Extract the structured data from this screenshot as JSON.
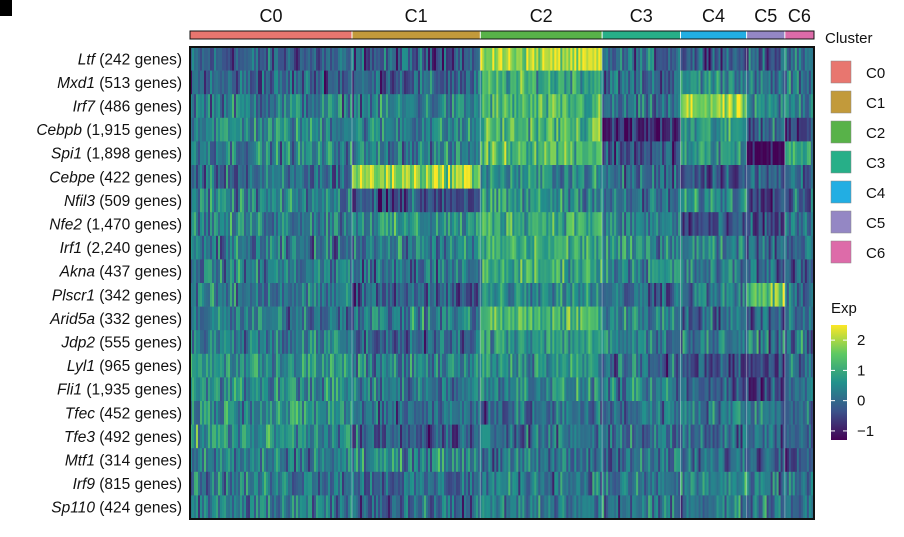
{
  "chart_data": {
    "type": "heatmap",
    "panel_label": "",
    "clusters": [
      {
        "label": "C0",
        "color": "#E8766F",
        "cells": 250
      },
      {
        "label": "C1",
        "color": "#C29A3B",
        "cells": 198
      },
      {
        "label": "C2",
        "color": "#58B249",
        "cells": 188
      },
      {
        "label": "C3",
        "color": "#27AF88",
        "cells": 121
      },
      {
        "label": "C4",
        "color": "#22AEE3",
        "cells": 102
      },
      {
        "label": "C5",
        "color": "#9487C4",
        "cells": 59
      },
      {
        "label": "C6",
        "color": "#DD6BA9",
        "cells": 45
      }
    ],
    "rows": [
      {
        "gene": "Ltf",
        "count": "(242 genes)"
      },
      {
        "gene": "Mxd1",
        "count": "(513 genes)"
      },
      {
        "gene": "Irf7",
        "count": "(486 genes)"
      },
      {
        "gene": "Cebpb",
        "count": "(1,915 genes)"
      },
      {
        "gene": "Spi1",
        "count": "(1,898 genes)"
      },
      {
        "gene": "Cebpe",
        "count": "(422 genes)"
      },
      {
        "gene": "Nfil3",
        "count": "(509 genes)"
      },
      {
        "gene": "Nfe2",
        "count": "(1,470 genes)"
      },
      {
        "gene": "Irf1",
        "count": "(2,240 genes)"
      },
      {
        "gene": "Akna",
        "count": "(437 genes)"
      },
      {
        "gene": "Plscr1",
        "count": "(342 genes)"
      },
      {
        "gene": "Arid5a",
        "count": "(332 genes)"
      },
      {
        "gene": "Jdp2",
        "count": "(555 genes)"
      },
      {
        "gene": "Lyl1",
        "count": "(965 genes)"
      },
      {
        "gene": "Fli1",
        "count": "(1,935 genes)"
      },
      {
        "gene": "Tfec",
        "count": "(452 genes)"
      },
      {
        "gene": "Tfe3",
        "count": "(492 genes)"
      },
      {
        "gene": "Mtf1",
        "count": "(314 genes)"
      },
      {
        "gene": "Irf9",
        "count": "(815 genes)"
      },
      {
        "gene": "Sp110",
        "count": "(424 genes)"
      }
    ],
    "mean_expression": [
      [
        -0.2,
        -0.2,
        2.0,
        0.0,
        -0.1,
        -0.1,
        0.0
      ],
      [
        -0.1,
        -0.1,
        1.0,
        0.0,
        0.6,
        0.0,
        0.2
      ],
      [
        0.3,
        0.3,
        1.1,
        0.0,
        1.8,
        0.3,
        0.4
      ],
      [
        0.5,
        0.4,
        1.2,
        -0.9,
        0.6,
        0.0,
        -0.5
      ],
      [
        0.4,
        0.3,
        1.4,
        -0.3,
        0.6,
        -1.3,
        0.8
      ],
      [
        0.0,
        1.9,
        0.5,
        0.0,
        -0.2,
        -0.2,
        0.1
      ],
      [
        0.3,
        -0.3,
        0.6,
        0.0,
        0.5,
        -0.2,
        0.0
      ],
      [
        0.4,
        0.6,
        1.1,
        0.3,
        -0.5,
        -0.5,
        0.1
      ],
      [
        0.1,
        0.3,
        1.0,
        0.5,
        0.4,
        0.1,
        0.1
      ],
      [
        0.3,
        0.1,
        1.0,
        0.5,
        0.2,
        0.0,
        -0.1
      ],
      [
        0.2,
        -0.2,
        0.6,
        0.0,
        0.2,
        1.4,
        0.2
      ],
      [
        0.2,
        0.3,
        1.2,
        0.4,
        0.0,
        0.0,
        0.2
      ],
      [
        0.3,
        -0.1,
        0.8,
        0.3,
        0.3,
        0.2,
        0.2
      ],
      [
        0.6,
        0.3,
        0.6,
        0.0,
        -0.4,
        -0.6,
        0.4
      ],
      [
        0.5,
        0.2,
        0.5,
        0.2,
        -0.2,
        -0.5,
        0.1
      ],
      [
        0.6,
        0.1,
        0.0,
        0.1,
        0.3,
        0.3,
        0.2
      ],
      [
        0.6,
        -0.3,
        0.2,
        0.1,
        0.0,
        0.1,
        0.1
      ],
      [
        0.3,
        0.5,
        0.1,
        0.1,
        0.0,
        0.0,
        0.0
      ],
      [
        0.3,
        0.0,
        0.3,
        0.1,
        0.4,
        0.1,
        0.2
      ],
      [
        0.2,
        0.0,
        0.2,
        0.1,
        0.3,
        0.3,
        0.1
      ]
    ],
    "legend": {
      "cluster_title": "Cluster",
      "exp_title": "Exp",
      "exp_range": [
        -1.3,
        2.5
      ],
      "exp_ticks": [
        2,
        1,
        0,
        -1
      ],
      "exp_tick_labels": [
        "2",
        "1",
        "0",
        "−1"
      ],
      "colormap": [
        "#440154",
        "#3b528b",
        "#21918c",
        "#5ec962",
        "#fde725"
      ]
    }
  }
}
